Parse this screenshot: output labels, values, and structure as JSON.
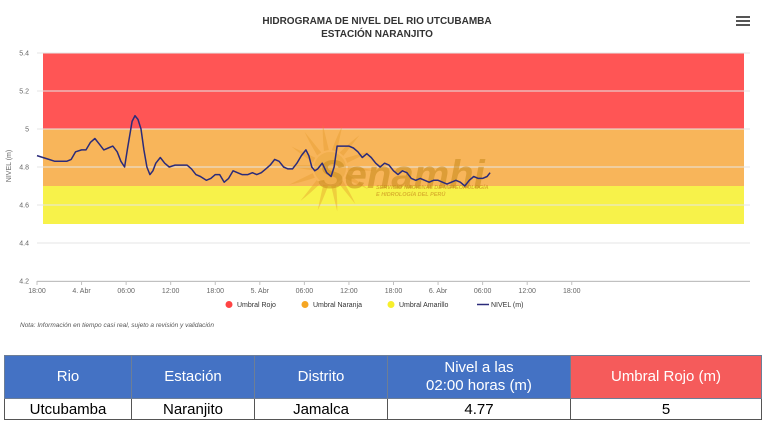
{
  "chart_data": {
    "type": "line",
    "title": "HIDROGRAMA DE NIVEL DEL RIO UTCUBAMBA",
    "subtitle": "ESTACIÓN NARANJITO",
    "ylabel": "NIVEL (m)",
    "xlabel": "",
    "ylim": [
      4.2,
      5.4
    ],
    "yticks": [
      "4.2",
      "4.4",
      "4.6",
      "4.8",
      "5",
      "5.2",
      "5.4"
    ],
    "xrange_hours": [
      18,
      114
    ],
    "xticks": [
      {
        "h": 18,
        "label": "18:00"
      },
      {
        "h": 24,
        "label": "4. Abr"
      },
      {
        "h": 30,
        "label": "06:00"
      },
      {
        "h": 36,
        "label": "12:00"
      },
      {
        "h": 42,
        "label": "18:00"
      },
      {
        "h": 48,
        "label": "5. Abr"
      },
      {
        "h": 54,
        "label": "06:00"
      },
      {
        "h": 60,
        "label": "12:00"
      },
      {
        "h": 66,
        "label": "18:00"
      },
      {
        "h": 72,
        "label": "6. Abr"
      },
      {
        "h": 78,
        "label": "06:00"
      },
      {
        "h": 84,
        "label": "12:00"
      },
      {
        "h": 90,
        "label": "18:00"
      }
    ],
    "bands": [
      {
        "name": "Umbral Rojo",
        "from": 5.0,
        "to": 5.4,
        "color": "#ff5555"
      },
      {
        "name": "Umbral Naranja",
        "from": 4.7,
        "to": 5.0,
        "color": "#f8b55a"
      },
      {
        "name": "Umbral Amarillo",
        "from": 4.5,
        "to": 4.7,
        "color": "#f7f24a"
      }
    ],
    "series": [
      {
        "name": "NIVEL (m)",
        "color": "#2b2b7a",
        "points": [
          [
            18.0,
            4.86
          ],
          [
            18.8,
            4.85
          ],
          [
            19.6,
            4.84
          ],
          [
            20.4,
            4.83
          ],
          [
            21.2,
            4.83
          ],
          [
            22.0,
            4.83
          ],
          [
            22.6,
            4.84
          ],
          [
            23.2,
            4.88
          ],
          [
            24.0,
            4.89
          ],
          [
            24.6,
            4.89
          ],
          [
            25.2,
            4.93
          ],
          [
            25.8,
            4.95
          ],
          [
            26.4,
            4.92
          ],
          [
            27.0,
            4.89
          ],
          [
            27.6,
            4.9
          ],
          [
            28.2,
            4.91
          ],
          [
            28.8,
            4.88
          ],
          [
            29.3,
            4.83
          ],
          [
            29.8,
            4.8
          ],
          [
            30.2,
            4.9
          ],
          [
            30.8,
            5.04
          ],
          [
            31.2,
            5.07
          ],
          [
            31.6,
            5.05
          ],
          [
            32.0,
            5.0
          ],
          [
            32.4,
            4.89
          ],
          [
            32.8,
            4.8
          ],
          [
            33.2,
            4.76
          ],
          [
            33.6,
            4.78
          ],
          [
            34.0,
            4.82
          ],
          [
            34.6,
            4.85
          ],
          [
            35.2,
            4.82
          ],
          [
            35.8,
            4.8
          ],
          [
            36.6,
            4.81
          ],
          [
            37.4,
            4.81
          ],
          [
            38.2,
            4.81
          ],
          [
            38.8,
            4.79
          ],
          [
            39.4,
            4.76
          ],
          [
            40.0,
            4.75
          ],
          [
            40.8,
            4.73
          ],
          [
            41.4,
            4.74
          ],
          [
            42.0,
            4.76
          ],
          [
            42.6,
            4.76
          ],
          [
            43.2,
            4.72
          ],
          [
            43.8,
            4.74
          ],
          [
            44.4,
            4.78
          ],
          [
            45.0,
            4.77
          ],
          [
            45.6,
            4.76
          ],
          [
            46.4,
            4.76
          ],
          [
            47.0,
            4.77
          ],
          [
            47.6,
            4.76
          ],
          [
            48.2,
            4.77
          ],
          [
            48.8,
            4.79
          ],
          [
            49.4,
            4.81
          ],
          [
            50.0,
            4.84
          ],
          [
            50.6,
            4.83
          ],
          [
            51.2,
            4.8
          ],
          [
            51.8,
            4.79
          ],
          [
            52.4,
            4.79
          ],
          [
            53.0,
            4.82
          ],
          [
            53.6,
            4.86
          ],
          [
            54.2,
            4.89
          ],
          [
            54.6,
            4.86
          ],
          [
            55.0,
            4.8
          ],
          [
            55.4,
            4.78
          ],
          [
            55.8,
            4.79
          ],
          [
            56.4,
            4.82
          ],
          [
            57.0,
            4.77
          ],
          [
            57.6,
            4.75
          ],
          [
            58.0,
            4.8
          ],
          [
            58.4,
            4.91
          ],
          [
            59.2,
            4.91
          ],
          [
            60.0,
            4.91
          ],
          [
            60.6,
            4.9
          ],
          [
            61.2,
            4.88
          ],
          [
            61.8,
            4.85
          ],
          [
            62.4,
            4.87
          ],
          [
            63.0,
            4.85
          ],
          [
            63.6,
            4.82
          ],
          [
            64.2,
            4.8
          ],
          [
            64.8,
            4.82
          ],
          [
            65.4,
            4.81
          ],
          [
            66.0,
            4.78
          ],
          [
            66.6,
            4.76
          ],
          [
            67.2,
            4.78
          ],
          [
            67.8,
            4.77
          ],
          [
            68.4,
            4.74
          ],
          [
            69.0,
            4.73
          ],
          [
            69.6,
            4.74
          ],
          [
            70.2,
            4.73
          ],
          [
            70.8,
            4.72
          ],
          [
            71.4,
            4.73
          ],
          [
            72.0,
            4.73
          ],
          [
            72.6,
            4.72
          ],
          [
            73.2,
            4.71
          ],
          [
            73.8,
            4.72
          ],
          [
            74.4,
            4.73
          ],
          [
            75.0,
            4.72
          ],
          [
            75.6,
            4.7
          ],
          [
            76.2,
            4.73
          ],
          [
            76.8,
            4.75
          ],
          [
            77.4,
            4.74
          ],
          [
            78.0,
            4.74
          ],
          [
            78.6,
            4.75
          ],
          [
            79.0,
            4.77
          ]
        ]
      }
    ],
    "legend": [
      {
        "name": "Umbral Rojo",
        "color": "#ff4444",
        "symbol": "circle"
      },
      {
        "name": "Umbral Naranja",
        "color": "#f5a623",
        "symbol": "circle"
      },
      {
        "name": "Umbral Amarillo",
        "color": "#f7ef2c",
        "symbol": "circle"
      },
      {
        "name": "NIVEL (m)",
        "color": "#2b2b7a",
        "symbol": "line"
      }
    ],
    "legend_position": "bottom-center",
    "grid": true,
    "note": "Nota: Información en tiempo casi real, sujeto a revisión y validación"
  },
  "watermark": {
    "text": "Senamhi",
    "line1": "SERVICIO NACIONAL DE METEOROLOGÍA",
    "line2": "E HIDROLOGÍA DEL PERÚ"
  },
  "menu_icon": "hamburger-menu-icon",
  "summary_table": {
    "headers": [
      {
        "label": "Rio",
        "color": "#4472c4"
      },
      {
        "label": "Estación",
        "color": "#4472c4"
      },
      {
        "label": "Distrito",
        "color": "#4472c4"
      },
      {
        "label_line1": "Nivel a las",
        "label_line2": "02:00 horas (m)",
        "color": "#4472c4"
      },
      {
        "label": "Umbral Rojo (m)",
        "color": "#f55b5b"
      }
    ],
    "row": [
      "Utcubamba",
      "Naranjito",
      "Jamalca",
      "4.77",
      "5"
    ]
  }
}
